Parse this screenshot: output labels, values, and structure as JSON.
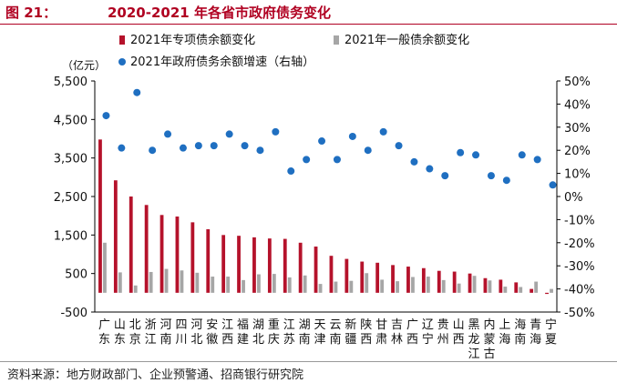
{
  "figure": {
    "label": "图 21：",
    "title": "2020-2021 年各省市政府债务变化",
    "source": "资料来源：地方财政部门、企业预警通、招商银行研究院"
  },
  "chart_data": {
    "type": "bar",
    "left_unit": "（亿元）",
    "categories": [
      "广东",
      "山东",
      "北京",
      "浙江",
      "河南",
      "四川",
      "河北",
      "安徽",
      "江西",
      "福建",
      "湖北",
      "重庆",
      "江苏",
      "湖南",
      "天津",
      "云南",
      "新疆",
      "陕西",
      "甘肃",
      "吉林",
      "广西",
      "辽宁",
      "贵州",
      "山西",
      "黑龙江",
      "内蒙古",
      "上海",
      "海南",
      "青海",
      "宁夏"
    ],
    "series": [
      {
        "name": "2021年专项债余额变化",
        "axis": "left",
        "kind": "bar",
        "color": "#b5122b",
        "values": [
          3980,
          2920,
          2500,
          2280,
          2020,
          1980,
          1830,
          1650,
          1500,
          1480,
          1440,
          1410,
          1400,
          1300,
          1200,
          960,
          880,
          810,
          780,
          720,
          680,
          640,
          570,
          550,
          500,
          380,
          340,
          270,
          100,
          -30
        ]
      },
      {
        "name": "2021年一般债余额变化",
        "axis": "left",
        "kind": "bar",
        "color": "#a6a6a6",
        "values": [
          1300,
          530,
          190,
          540,
          620,
          580,
          520,
          420,
          420,
          330,
          480,
          490,
          400,
          450,
          230,
          290,
          310,
          510,
          340,
          300,
          410,
          420,
          330,
          240,
          440,
          320,
          160,
          150,
          290,
          100
        ]
      },
      {
        "name": "2021年政府债务余额增速（右轴）",
        "axis": "right",
        "kind": "scatter",
        "color": "#1f6fc1",
        "values": [
          35,
          21,
          45,
          20,
          27,
          21,
          22,
          22,
          27,
          22,
          20,
          28,
          11,
          16,
          24,
          16,
          26,
          20,
          28,
          22,
          15,
          12,
          9,
          19,
          18,
          9,
          7,
          18,
          16,
          5
        ]
      }
    ],
    "left_axis": {
      "min": -500,
      "max": 5500,
      "ticks": [
        -500,
        500,
        1500,
        2500,
        3500,
        4500,
        5500
      ],
      "tick_labels": [
        "-500",
        "500",
        "1,500",
        "2,500",
        "3,500",
        "4,500",
        "5,500"
      ]
    },
    "right_axis": {
      "min": -50,
      "max": 50,
      "ticks": [
        -50,
        -40,
        -30,
        -20,
        -10,
        0,
        10,
        20,
        30,
        40,
        50
      ],
      "tick_labels": [
        "-50%",
        "-40%",
        "-30%",
        "-20%",
        "-10%",
        "0%",
        "10%",
        "20%",
        "30%",
        "40%",
        "50%"
      ]
    },
    "legend_position": "top"
  }
}
